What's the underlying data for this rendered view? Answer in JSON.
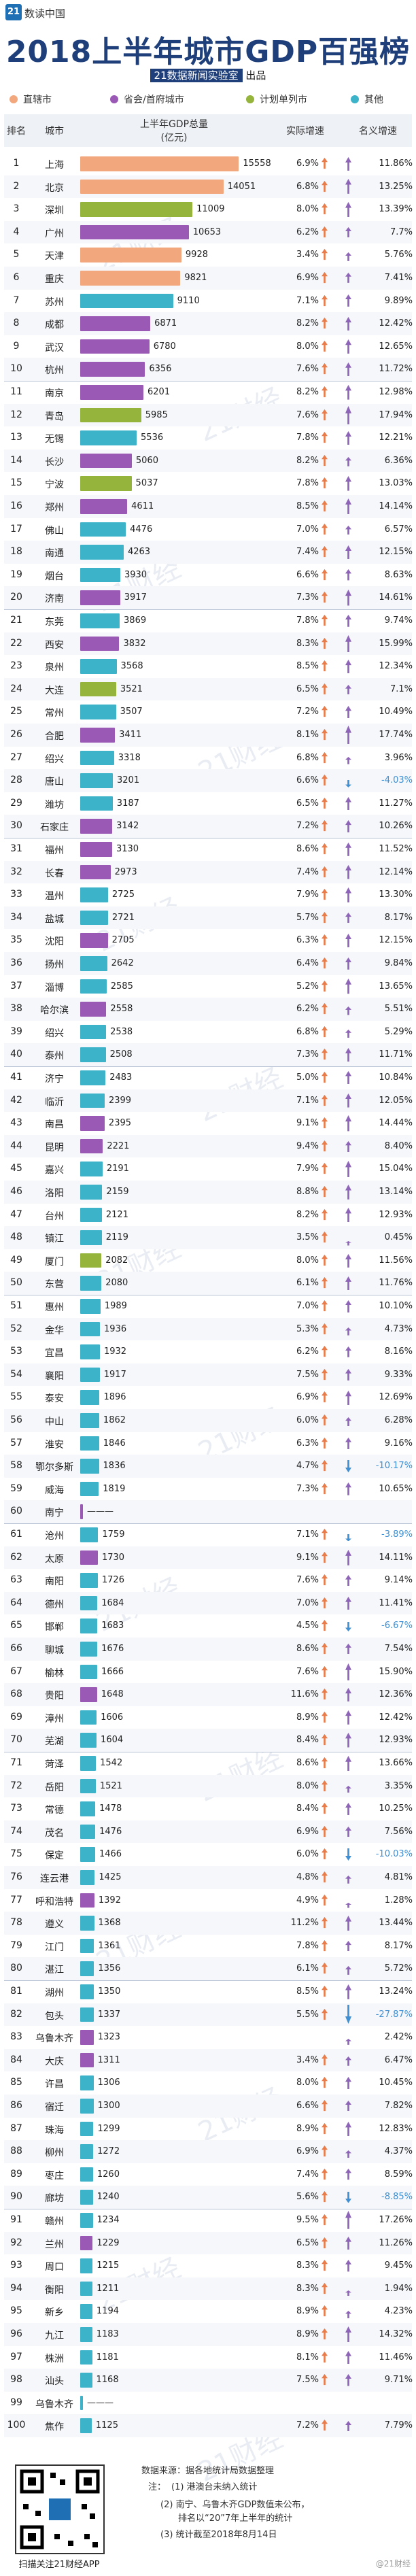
{
  "header": {
    "logo": "21",
    "brand": "数读中国"
  },
  "title": "2018上半年城市GDP百强榜",
  "subtitle": {
    "badge": "21数据新闻实验室",
    "suffix": "出品"
  },
  "legend": [
    {
      "label": "直辖市",
      "color": "#f2a77c",
      "icon": "dot-icon"
    },
    {
      "label": "省会/首府城市",
      "color": "#9b59b6",
      "icon": "dot-icon"
    },
    {
      "label": "计划单列市",
      "color": "#95b43c",
      "icon": "dot-icon"
    },
    {
      "label": "其他",
      "color": "#3cb3c9",
      "icon": "dot-icon"
    }
  ],
  "columns": {
    "rank": "排名",
    "city": "城市",
    "gdp_line1": "上半年GDP总量",
    "gdp_line2": "(亿元)",
    "real_growth": "实际增速",
    "nominal_growth": "名义增速"
  },
  "arrow_colors": {
    "up": "#e87c4b",
    "down": "#3f8fd2",
    "nominal_up": "#8e64b8"
  },
  "chart_data": {
    "type": "bar",
    "title": "2018上半年城市GDP百强榜",
    "ylabel": "上半年GDP总量(亿元)",
    "categories": [
      "上海",
      "北京",
      "深圳",
      "广州",
      "天津",
      "重庆",
      "苏州",
      "成都",
      "武汉",
      "杭州",
      "南京",
      "青岛",
      "无锡",
      "长沙",
      "宁波",
      "郑州",
      "佛山",
      "南通",
      "烟台",
      "济南",
      "东莞",
      "西安",
      "泉州",
      "大连",
      "常州",
      "合肥",
      "绍兴",
      "唐山",
      "潍坊",
      "石家庄",
      "福州",
      "长春",
      "温州",
      "盐城",
      "沈阳",
      "扬州",
      "淄博",
      "哈尔滨",
      "绍兴",
      "泰州",
      "济宁",
      "临沂",
      "南昌",
      "昆明",
      "嘉兴",
      "洛阳",
      "台州",
      "镇江",
      "厦门",
      "东营",
      "惠州",
      "金华",
      "宜昌",
      "襄阳",
      "泰安",
      "中山",
      "淮安",
      "鄂尔多斯",
      "威海",
      "南宁",
      "沧州",
      "太原",
      "南阳",
      "德州",
      "邯郸",
      "聊城",
      "榆林",
      "贵阳",
      "漳州",
      "芜湖",
      "菏泽",
      "岳阳",
      "常德",
      "茂名",
      "保定",
      "连云港",
      "呼和浩特",
      "遵义",
      "江门",
      "湛江",
      "湖州",
      "包头",
      "乌鲁木齐",
      "大庆",
      "许昌",
      "宿迁",
      "珠海",
      "柳州",
      "枣庄",
      "廊坊",
      "赣州",
      "兰州",
      "周口",
      "衡阳",
      "新乡",
      "九江",
      "株洲",
      "汕头",
      "乌鲁木齐",
      "焦作"
    ],
    "series": [
      {
        "name": "上半年GDP总量",
        "values": [
          15558,
          14051,
          11009,
          10653,
          9928,
          9821,
          9110,
          6871,
          6780,
          6356,
          6201,
          5985,
          5536,
          5060,
          5037,
          4611,
          4476,
          4263,
          3930,
          3917,
          3869,
          3832,
          3568,
          3521,
          3507,
          3411,
          3318,
          3201,
          3187,
          3142,
          3130,
          2973,
          2725,
          2721,
          2705,
          2642,
          2585,
          2558,
          2538,
          2508,
          2483,
          2399,
          2395,
          2221,
          2191,
          2159,
          2121,
          2119,
          2082,
          2080,
          1989,
          1936,
          1932,
          1917,
          1896,
          1862,
          1846,
          1836,
          1819,
          null,
          1759,
          1730,
          1726,
          1684,
          1683,
          1676,
          1666,
          1648,
          1606,
          1604,
          1542,
          1521,
          1478,
          1476,
          1466,
          1425,
          1392,
          1368,
          1361,
          1356,
          1350,
          1337,
          1323,
          1311,
          1306,
          1300,
          1299,
          1272,
          1260,
          1240,
          1234,
          1229,
          1215,
          1211,
          1194,
          1183,
          1181,
          1168,
          null,
          1125
        ]
      },
      {
        "name": "实际增速",
        "values": [
          "6.9%",
          "6.8%",
          "8.0%",
          "6.2%",
          "3.4%",
          "6.9%",
          "7.1%",
          "8.2%",
          "8.0%",
          "7.6%",
          "8.2%",
          "7.6%",
          "7.8%",
          "8.2%",
          "7.8%",
          "8.5%",
          "7.0%",
          "7.4%",
          "6.6%",
          "7.3%",
          "7.8%",
          "8.3%",
          "8.5%",
          "6.5%",
          "7.2%",
          "8.1%",
          "6.8%",
          "6.6%",
          "6.5%",
          "7.2%",
          "8.6%",
          "7.4%",
          "7.9%",
          "5.7%",
          "6.3%",
          "6.4%",
          "5.2%",
          "6.2%",
          "6.8%",
          "7.3%",
          "5.0%",
          "7.1%",
          "9.1%",
          "9.4%",
          "7.9%",
          "8.8%",
          "8.2%",
          "3.5%",
          "8.0%",
          "6.1%",
          "7.0%",
          "5.3%",
          "6.2%",
          "7.5%",
          "6.9%",
          "6.0%",
          "6.3%",
          "4.7%",
          "7.3%",
          "",
          "7.1%",
          "9.1%",
          "7.6%",
          "7.0%",
          "4.5%",
          "8.6%",
          "7.6%",
          "11.6%",
          "8.9%",
          "8.4%",
          "8.6%",
          "8.0%",
          "8.4%",
          "6.9%",
          "6.0%",
          "4.8%",
          "4.9%",
          "11.2%",
          "7.8%",
          "6.1%",
          "8.5%",
          "5.5%",
          "",
          "3.4%",
          "8.0%",
          "6.6%",
          "8.9%",
          "6.9%",
          "7.4%",
          "5.6%",
          "9.5%",
          "6.5%",
          "8.3%",
          "8.3%",
          "8.9%",
          "8.9%",
          "8.1%",
          "7.5%",
          "",
          "7.2%"
        ]
      },
      {
        "name": "名义增速",
        "values": [
          "11.86%",
          "13.25%",
          "13.39%",
          "7.7%",
          "5.76%",
          "7.41%",
          "9.89%",
          "12.42%",
          "12.65%",
          "11.72%",
          "12.98%",
          "17.94%",
          "12.21%",
          "6.36%",
          "13.03%",
          "14.14%",
          "6.57%",
          "12.15%",
          "8.63%",
          "14.61%",
          "9.74%",
          "15.99%",
          "12.34%",
          "7.1%",
          "10.49%",
          "17.74%",
          "3.96%",
          "-4.03%",
          "11.27%",
          "10.26%",
          "11.52%",
          "12.14%",
          "13.30%",
          "8.17%",
          "12.15%",
          "9.84%",
          "13.65%",
          "5.51%",
          "5.29%",
          "11.71%",
          "10.84%",
          "12.05%",
          "14.44%",
          "8.40%",
          "15.04%",
          "13.14%",
          "12.93%",
          "0.45%",
          "11.56%",
          "11.76%",
          "10.10%",
          "4.73%",
          "8.16%",
          "9.33%",
          "12.69%",
          "6.28%",
          "9.16%",
          "-10.17%",
          "10.65%",
          "",
          "-3.89%",
          "14.11%",
          "9.14%",
          "11.41%",
          "-6.67%",
          "7.54%",
          "15.90%",
          "12.36%",
          "12.42%",
          "12.93%",
          "13.66%",
          "3.35%",
          "10.25%",
          "7.56%",
          "-10.03%",
          "4.81%",
          "1.28%",
          "13.44%",
          "8.17%",
          "5.72%",
          "13.24%",
          "-27.87%",
          "2.42%",
          "6.47%",
          "10.45%",
          "7.82%",
          "12.83%",
          "4.37%",
          "8.59%",
          "-8.85%",
          "17.26%",
          "11.26%",
          "9.45%",
          "1.94%",
          "4.23%",
          "14.32%",
          "11.46%",
          "9.71%",
          "",
          "7.79%"
        ]
      }
    ]
  },
  "footer": {
    "qr_caption": "扫描关注21财经APP",
    "source": "数据来源：据各地统计局数据整理",
    "note_label": "注：",
    "note1": "(1) 港澳台未纳入统计",
    "note2": "(2) 南宁、乌鲁木齐GDP数值未公布，",
    "note2b": "排名以“20”7年上半年的统计",
    "note3": "(3) 统计截至2018年8月14日",
    "weibo": "@21财经"
  }
}
